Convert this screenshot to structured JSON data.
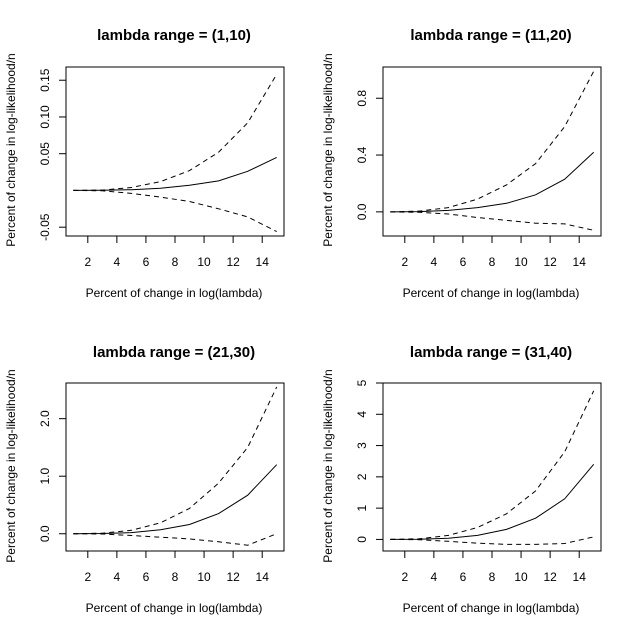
{
  "chart_data": [
    {
      "type": "line",
      "title": "lambda range = (1,10)",
      "xlabel": "Percent of change in log(lambda)",
      "ylabel": "Percent of change in log-likelihood/n",
      "xlim": [
        0.5,
        15.5
      ],
      "ylim": [
        -0.062,
        0.168
      ],
      "xticks": [
        2,
        4,
        6,
        8,
        10,
        12,
        14
      ],
      "yticks": [
        -0.05,
        0.05,
        0.1,
        0.15
      ],
      "ytick_labels": [
        "-0.05",
        "0.05",
        "0.10",
        "0.15"
      ],
      "x": [
        1,
        3,
        5,
        7,
        9,
        11,
        13,
        15
      ],
      "series": [
        {
          "name": "upper",
          "style": "dashed",
          "values": [
            0.0,
            0.0005,
            0.004,
            0.012,
            0.027,
            0.052,
            0.092,
            0.158
          ]
        },
        {
          "name": "mean",
          "style": "solid",
          "values": [
            0.0,
            0.0002,
            0.001,
            0.003,
            0.007,
            0.013,
            0.026,
            0.045
          ]
        },
        {
          "name": "lower",
          "style": "dashed",
          "values": [
            0.0,
            -0.0005,
            -0.004,
            -0.009,
            -0.015,
            -0.025,
            -0.036,
            -0.056
          ]
        }
      ]
    },
    {
      "type": "line",
      "title": "lambda range = (11,20)",
      "xlabel": "Percent of change in log(lambda)",
      "ylabel": "Percent of change in log-likelihood/n",
      "xlim": [
        0.5,
        15.5
      ],
      "ylim": [
        -0.17,
        1.02
      ],
      "xticks": [
        2,
        4,
        6,
        8,
        10,
        12,
        14
      ],
      "yticks": [
        0.0,
        0.4,
        0.8
      ],
      "ytick_labels": [
        "0.0",
        "0.4",
        "0.8"
      ],
      "x": [
        1,
        3,
        5,
        7,
        9,
        11,
        13,
        15
      ],
      "series": [
        {
          "name": "upper",
          "style": "dashed",
          "values": [
            0.0,
            0.005,
            0.03,
            0.09,
            0.19,
            0.34,
            0.6,
            0.99
          ]
        },
        {
          "name": "mean",
          "style": "solid",
          "values": [
            0.0,
            0.002,
            0.01,
            0.03,
            0.06,
            0.12,
            0.23,
            0.42
          ]
        },
        {
          "name": "lower",
          "style": "dashed",
          "values": [
            0.0,
            -0.003,
            -0.015,
            -0.04,
            -0.06,
            -0.08,
            -0.085,
            -0.13
          ]
        }
      ]
    },
    {
      "type": "line",
      "title": "lambda range = (21,30)",
      "xlabel": "Percent of change in log(lambda)",
      "ylabel": "Percent of change in log-likelihood/n",
      "xlim": [
        0.5,
        15.5
      ],
      "ylim": [
        -0.3,
        2.62
      ],
      "xticks": [
        2,
        4,
        6,
        8,
        10,
        12,
        14
      ],
      "yticks": [
        0.0,
        1.0,
        2.0
      ],
      "ytick_labels": [
        "0.0",
        "1.0",
        "2.0"
      ],
      "x": [
        1,
        3,
        5,
        7,
        9,
        11,
        13,
        15
      ],
      "series": [
        {
          "name": "upper",
          "style": "dashed",
          "values": [
            0.0,
            0.01,
            0.06,
            0.19,
            0.44,
            0.88,
            1.5,
            2.55
          ]
        },
        {
          "name": "mean",
          "style": "solid",
          "values": [
            0.0,
            0.004,
            0.02,
            0.07,
            0.16,
            0.35,
            0.67,
            1.2
          ]
        },
        {
          "name": "lower",
          "style": "dashed",
          "values": [
            0.0,
            -0.005,
            -0.03,
            -0.06,
            -0.09,
            -0.14,
            -0.2,
            0.0
          ]
        }
      ]
    },
    {
      "type": "line",
      "title": "lambda range = (31,40)",
      "xlabel": "Percent of change in log(lambda)",
      "ylabel": "Percent of change in log-likelihood/n",
      "xlim": [
        0.5,
        15.5
      ],
      "ylim": [
        -0.37,
        5.0
      ],
      "xticks": [
        2,
        4,
        6,
        8,
        10,
        12,
        14
      ],
      "yticks": [
        0,
        1,
        2,
        3,
        4,
        5
      ],
      "ytick_labels": [
        "0",
        "1",
        "2",
        "3",
        "4",
        "5"
      ],
      "x": [
        1,
        3,
        5,
        7,
        9,
        11,
        13,
        15
      ],
      "series": [
        {
          "name": "upper",
          "style": "dashed",
          "values": [
            0.0,
            0.02,
            0.13,
            0.38,
            0.82,
            1.55,
            2.8,
            4.75
          ]
        },
        {
          "name": "mean",
          "style": "solid",
          "values": [
            0.0,
            0.008,
            0.04,
            0.13,
            0.32,
            0.68,
            1.3,
            2.4
          ]
        },
        {
          "name": "lower",
          "style": "dashed",
          "values": [
            0.0,
            -0.01,
            -0.06,
            -0.12,
            -0.16,
            -0.16,
            -0.13,
            0.08
          ]
        }
      ]
    }
  ]
}
